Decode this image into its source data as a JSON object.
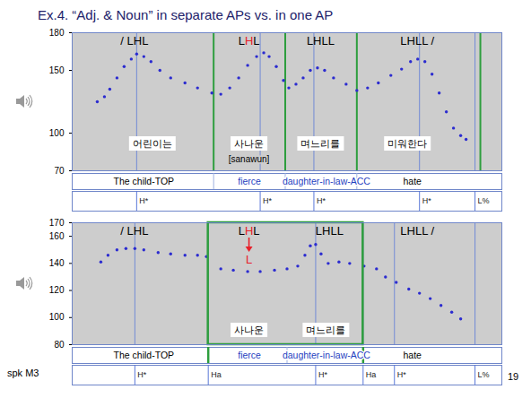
{
  "title": "Ex.4.  “Adj. & Noun” in separate APs vs. in one AP",
  "speaker": "spk M3",
  "slide_number": 19,
  "chart_data": [
    {
      "type": "scatter",
      "marker": "dot",
      "color": "#2b2bd0",
      "tick_labels": "y",
      "xlim": [
        0,
        2.4
      ],
      "ylim": [
        70,
        180
      ],
      "yticks": [
        70,
        100,
        150,
        180
      ],
      "x": [
        0.14,
        0.18,
        0.21,
        0.25,
        0.29,
        0.33,
        0.36,
        0.4,
        0.44,
        0.49,
        0.55,
        0.63,
        0.7,
        0.78,
        0.83,
        0.88,
        0.93,
        0.98,
        1.03,
        1.07,
        1.1,
        1.14,
        1.18,
        1.21,
        1.25,
        1.29,
        1.33,
        1.37,
        1.41,
        1.46,
        1.53,
        1.59,
        1.65,
        1.71,
        1.78,
        1.84,
        1.89,
        1.93,
        1.97,
        2.01,
        2.05,
        2.09,
        2.13,
        2.17,
        2.2
      ],
      "values": [
        125,
        129,
        135,
        144,
        153,
        159,
        163,
        161,
        157,
        150,
        144,
        140,
        136,
        132,
        131,
        136,
        144,
        154,
        161,
        164,
        161,
        153,
        142,
        136,
        139,
        144,
        150,
        152,
        150,
        144,
        139,
        134,
        136,
        140,
        146,
        151,
        157,
        159,
        157,
        147,
        132,
        117,
        104,
        98,
        95
      ],
      "pitch_labels": [
        {
          "x": 0.35,
          "parts": [
            {
              "text": "/ LHL"
            }
          ]
        },
        {
          "x": 0.99,
          "parts": [
            {
              "text": "L"
            },
            {
              "text": "H",
              "color": "#e8202a"
            },
            {
              "text": "L"
            }
          ]
        },
        {
          "x": 1.39,
          "parts": [
            {
              "text": "LHLL"
            }
          ]
        },
        {
          "x": 1.93,
          "parts": [
            {
              "text": "LHLL /"
            }
          ]
        }
      ],
      "words": [
        {
          "x": 0.45,
          "text": "어린이는"
        },
        {
          "x": 0.99,
          "text": "사나운",
          "romanization": "[sanawun]"
        },
        {
          "x": 1.39,
          "text": "며느리를"
        },
        {
          "x": 1.875,
          "text": "미워한다"
        }
      ],
      "gloss": [
        {
          "x": 0.4,
          "text": "The child-TOP",
          "color": "#000000"
        },
        {
          "x": 0.99,
          "text": "fierce",
          "color": "#1f3fbf"
        },
        {
          "x": 1.42,
          "text": "daughter-in-law-ACC",
          "color": "#1f3fbf"
        },
        {
          "x": 1.9,
          "text": "hate",
          "color": "#000000"
        }
      ],
      "tones": [
        {
          "x": 0.36,
          "label": "H*"
        },
        {
          "x": 1.05,
          "label": "H*"
        },
        {
          "x": 1.35,
          "label": "H*"
        },
        {
          "x": 1.94,
          "label": "H*"
        },
        {
          "x": 2.25,
          "label": "L%"
        }
      ],
      "ap_boundaries": [
        0.79,
        1.19,
        1.59,
        2.28
      ],
      "word_boundaries": [
        0.79,
        1.19,
        1.59
      ]
    },
    {
      "type": "scatter",
      "marker": "dot",
      "color": "#2b2bd0",
      "tick_labels": "y",
      "xlim": [
        0,
        2.4
      ],
      "ylim": [
        80,
        170
      ],
      "yticks": [
        80,
        100,
        120,
        140,
        160,
        170
      ],
      "x": [
        0.16,
        0.2,
        0.25,
        0.3,
        0.35,
        0.4,
        0.48,
        0.55,
        0.63,
        0.7,
        0.75,
        0.83,
        0.9,
        0.98,
        1.05,
        1.13,
        1.2,
        1.26,
        1.3,
        1.33,
        1.36,
        1.39,
        1.43,
        1.49,
        1.55,
        1.63,
        1.7,
        1.75,
        1.81,
        1.88,
        1.94,
        2.0,
        2.06,
        2.12,
        2.17
      ],
      "values": [
        141,
        146,
        150,
        151,
        151,
        150,
        148,
        147,
        146,
        146,
        145,
        136,
        135,
        134,
        134,
        135,
        136,
        138,
        146,
        153,
        154,
        147,
        140,
        141,
        140,
        138,
        136,
        130,
        126,
        121,
        118,
        114,
        109,
        104,
        99
      ],
      "pitch_labels": [
        {
          "x": 0.35,
          "parts": [
            {
              "text": "/ LHL"
            }
          ]
        },
        {
          "x": 0.99,
          "parts": [
            {
              "text": "L"
            },
            {
              "text": "H",
              "color": "#e8202a",
              "lowered_to": "L"
            },
            {
              "text": "L"
            }
          ]
        },
        {
          "x": 1.44,
          "parts": [
            {
              "text": "LHLL"
            }
          ]
        },
        {
          "x": 1.93,
          "parts": [
            {
              "text": "LHLL /"
            }
          ]
        }
      ],
      "words": [
        {
          "x": 0.99,
          "text": "사나운"
        },
        {
          "x": 1.42,
          "text": "며느리를"
        }
      ],
      "gloss": [
        {
          "x": 0.4,
          "text": "The child-TOP",
          "color": "#000000"
        },
        {
          "x": 0.99,
          "text": "fierce",
          "color": "#1f3fbf"
        },
        {
          "x": 1.42,
          "text": "daughter-in-law-ACC",
          "color": "#1f3fbf"
        },
        {
          "x": 1.9,
          "text": "hate",
          "color": "#000000"
        }
      ],
      "tones": [
        {
          "x": 0.35,
          "label": "H*"
        },
        {
          "x": 0.76,
          "label": "Ha"
        },
        {
          "x": 1.36,
          "label": "H*"
        },
        {
          "x": 1.625,
          "label": "Ha"
        },
        {
          "x": 1.8,
          "label": "H*"
        },
        {
          "x": 2.25,
          "label": "L%"
        }
      ],
      "ap_box": [
        0.76,
        1.625
      ],
      "word_boundaries": [
        0.76,
        1.2,
        1.625
      ]
    }
  ]
}
